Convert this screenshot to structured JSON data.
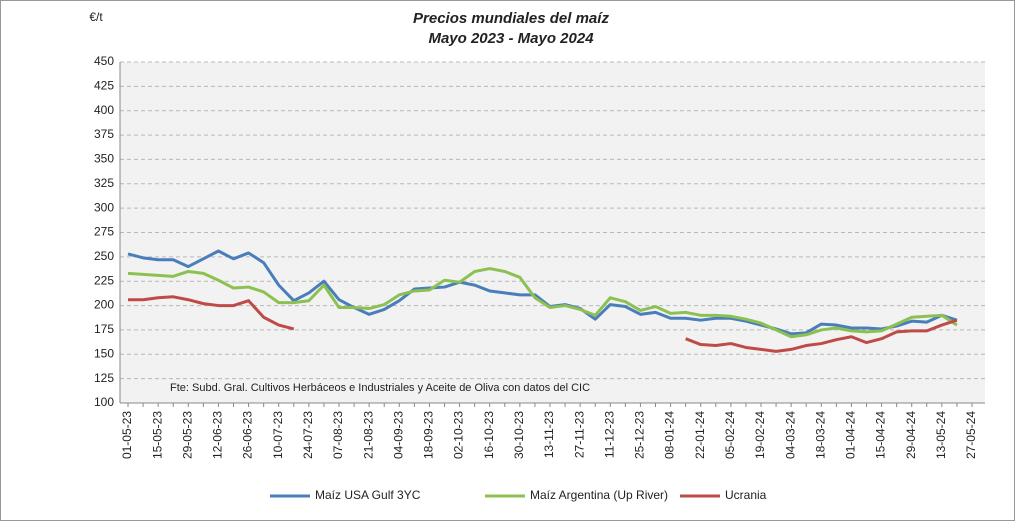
{
  "chart_data": {
    "type": "line",
    "title": "Precios mundiales del maíz",
    "subtitle": "Mayo 2023 - Mayo 2024",
    "y_label": "€/t",
    "annotation": "Fte: Subd. Gral. Cultivos Herbáceos e Industriales y Aceite de Oliva con datos del CIC",
    "categories": [
      "01-05-23",
      null,
      "15-05-23",
      null,
      "29-05-23",
      null,
      "12-06-23",
      null,
      "26-06-23",
      null,
      "10-07-23",
      null,
      "24-07-23",
      null,
      "07-08-23",
      null,
      "21-08-23",
      null,
      "04-09-23",
      null,
      "18-09-23",
      null,
      "02-10-23",
      null,
      "16-10-23",
      null,
      "30-10-23",
      null,
      "13-11-23",
      null,
      "27-11-23",
      null,
      "11-12-23",
      null,
      "25-12-23",
      null,
      "08-01-24",
      null,
      "22-01-24",
      null,
      "05-02-24",
      null,
      "19-02-24",
      null,
      "04-03-24",
      null,
      "18-03-24",
      null,
      "01-04-24",
      null,
      "15-04-24",
      null,
      "29-04-24",
      null,
      "13-05-24",
      null,
      "27-05-24"
    ],
    "series": [
      {
        "name": "Maíz USA Gulf 3YC",
        "color": "#4a7ebb",
        "values": [
          253,
          249,
          247,
          247,
          240,
          248,
          256,
          248,
          254,
          244,
          221,
          205,
          213,
          225,
          206,
          198,
          191,
          196,
          205,
          217,
          218,
          219,
          224,
          221,
          215,
          213,
          211,
          211,
          199,
          201,
          197,
          186,
          201,
          199,
          191,
          193,
          187,
          187,
          185,
          187,
          187,
          184,
          180,
          176,
          171,
          172,
          181,
          180,
          177,
          177,
          176,
          179,
          184,
          183,
          190,
          185,
          null
        ]
      },
      {
        "name": "Maíz Argentina (Up River)",
        "color": "#8cc152",
        "values": [
          233,
          232,
          231,
          230,
          235,
          233,
          226,
          218,
          219,
          214,
          203,
          203,
          205,
          221,
          198,
          198,
          197,
          201,
          211,
          215,
          216,
          226,
          224,
          235,
          238,
          235,
          229,
          208,
          198,
          200,
          196,
          190,
          208,
          204,
          195,
          199,
          192,
          193,
          190,
          190,
          189,
          186,
          182,
          175,
          168,
          170,
          175,
          177,
          174,
          173,
          174,
          181,
          188,
          189,
          190,
          180,
          null
        ]
      },
      {
        "name": "Ucrania",
        "color": "#be4b48",
        "values": [
          206,
          206,
          208,
          209,
          206,
          202,
          200,
          200,
          205,
          188,
          180,
          176,
          null,
          null,
          null,
          null,
          null,
          null,
          null,
          null,
          null,
          null,
          null,
          null,
          null,
          null,
          null,
          null,
          null,
          null,
          null,
          null,
          null,
          null,
          null,
          null,
          null,
          166,
          160,
          159,
          161,
          157,
          155,
          153,
          155,
          159,
          161,
          165,
          168,
          162,
          166,
          173,
          174,
          174,
          180,
          185,
          null
        ]
      }
    ],
    "ylim": [
      100,
      450
    ],
    "yticks": [
      100,
      125,
      150,
      175,
      200,
      225,
      250,
      275,
      300,
      325,
      350,
      375,
      400,
      425,
      450
    ],
    "grid": true
  }
}
